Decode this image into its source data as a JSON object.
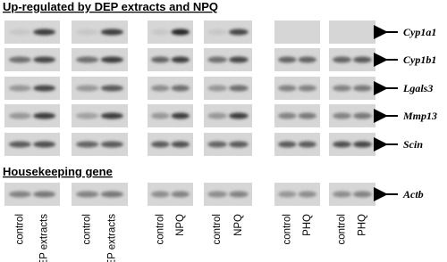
{
  "titles": [
    "Up-regulated by DEP extracts and NPQ",
    "Housekeeping gene"
  ],
  "genes": [
    "Cyp1a1",
    "Cyp1b1",
    "Lgals3",
    "Mmp13",
    "Scin"
  ],
  "housekeeping_gene": "Actb",
  "panels": [
    {
      "lanes": [
        "control",
        "DEP extracts"
      ]
    },
    {
      "lanes": [
        "control",
        "DEP extracts"
      ]
    },
    {
      "lanes": [
        "control",
        "NPQ"
      ]
    },
    {
      "lanes": [
        "control",
        "NPQ"
      ]
    },
    {
      "lanes": [
        "control",
        "PHQ"
      ]
    },
    {
      "lanes": [
        "control",
        "PHQ"
      ]
    }
  ]
}
